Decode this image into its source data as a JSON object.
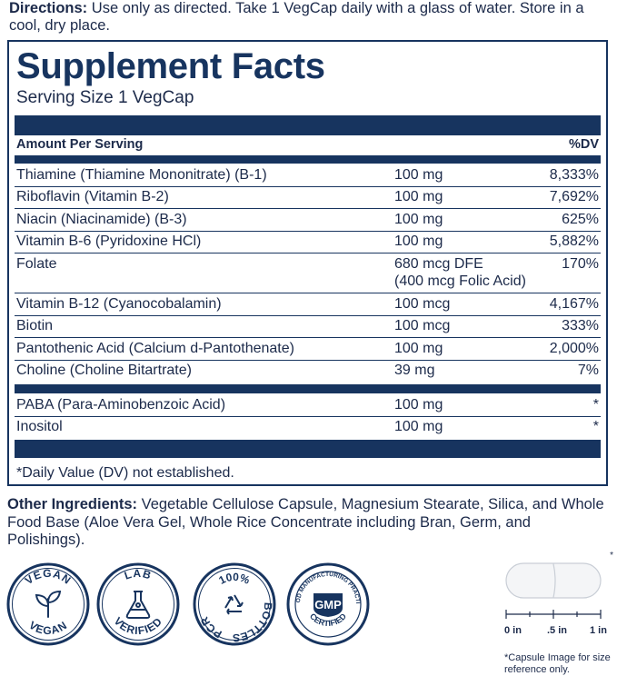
{
  "directions": {
    "label": "Directions:",
    "text": " Use only as directed. Take 1 VegCap daily with a glass of water. Store in a cool, dry place."
  },
  "facts": {
    "title": "Supplement Facts",
    "serving": "Serving Size 1 VegCap",
    "header_left": "Amount Per Serving",
    "header_right": "%DV",
    "rows": [
      {
        "name": "Thiamine (Thiamine Mononitrate) (B-1)",
        "amount": "100 mg",
        "dv": "8,333%"
      },
      {
        "name": "Riboflavin (Vitamin B-2)",
        "amount": "100 mg",
        "dv": "7,692%"
      },
      {
        "name": "Niacin (Niacinamide) (B-3)",
        "amount": "100 mg",
        "dv": "625%"
      },
      {
        "name": "Vitamin B-6 (Pyridoxine HCl)",
        "amount": "100 mg",
        "dv": "5,882%"
      },
      {
        "name": "Folate",
        "amount": "680 mcg DFE",
        "amount2": "(400 mcg Folic Acid)",
        "dv": "170%"
      },
      {
        "name": "Vitamin B-12 (Cyanocobalamin)",
        "amount": "100 mcg",
        "dv": "4,167%"
      },
      {
        "name": "Biotin",
        "amount": "100 mcg",
        "dv": "333%"
      },
      {
        "name": "Pantothenic Acid (Calcium d-Pantothenate)",
        "amount": "100 mg",
        "dv": "2,000%"
      },
      {
        "name": "Choline (Choline Bitartrate)",
        "amount": "39 mg",
        "dv": "7%"
      },
      {
        "name": "PABA (Para-Aminobenzoic Acid)",
        "amount": "100 mg",
        "dv": "*"
      },
      {
        "name": "Inositol",
        "amount": "100 mg",
        "dv": "*"
      }
    ],
    "footnote": "*Daily Value (DV) not established."
  },
  "other_ingredients": {
    "label": "Other Ingredients:",
    "text": " Vegetable Cellulose Capsule, Magnesium Stearate, Silica, and Whole Food Base (Aloe Vera Gel, Whole Rice Concentrate including Bran, Germ, and Polishings)."
  },
  "badges": {
    "vegan": {
      "top": "VEGAN",
      "bottom": "VEGAN",
      "icon": "leaf-icon"
    },
    "lab": {
      "top": "LAB",
      "bottom": "VERIFIED",
      "icon": "flask-icon"
    },
    "pcr": {
      "top": "100%",
      "left": "PCR",
      "right": "BOTTLES",
      "icon": "recycle-icon"
    },
    "gmp": {
      "ring_top": "GOOD MANUFACTURING PRACTICE",
      "center": "GMP",
      "bottom": "CERTIFIED"
    }
  },
  "capsule": {
    "asterisk": "*",
    "scale": [
      "0 in",
      ".5 in",
      "1 in"
    ],
    "note": "*Capsule Image for size reference only."
  },
  "colors": {
    "navy": "#17345f",
    "text": "#1c2a4a"
  }
}
